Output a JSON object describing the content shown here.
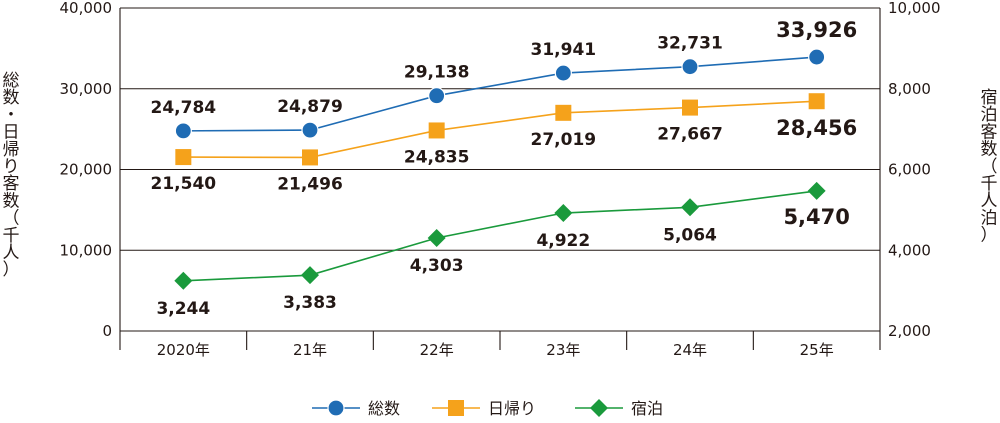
{
  "chart_data": {
    "type": "line",
    "categories": [
      "2020年",
      "21年",
      "22年",
      "23年",
      "24年",
      "25年"
    ],
    "ylabel_left": "総数・日帰り客数（千人）",
    "ylabel_right": "宿泊客数（千人泊）",
    "ylim_left": [
      0,
      40000
    ],
    "ylim_right": [
      2000,
      10000
    ],
    "yticks_left": [
      "0",
      "10,000",
      "20,000",
      "30,000",
      "40,000"
    ],
    "yticks_right": [
      "2,000",
      "4,000",
      "6,000",
      "8,000",
      "10,000"
    ],
    "grid": true,
    "legend_position": "bottom",
    "series": [
      {
        "name": "総数",
        "axis": "left",
        "marker": "circle",
        "color": "#1f6cb4",
        "values": [
          24784,
          24879,
          29138,
          31941,
          32731,
          33926
        ],
        "labels": [
          "24,784",
          "24,879",
          "29,138",
          "31,941",
          "32,731",
          "33,926"
        ]
      },
      {
        "name": "日帰り",
        "axis": "left",
        "marker": "square",
        "color": "#f5a21b",
        "values": [
          21540,
          21496,
          24835,
          27019,
          27667,
          28456
        ],
        "labels": [
          "21,540",
          "21,496",
          "24,835",
          "27,019",
          "27,667",
          "28,456"
        ]
      },
      {
        "name": "宿泊",
        "axis": "right",
        "marker": "diamond",
        "color": "#1a9a3c",
        "values": [
          3244,
          3383,
          4303,
          4922,
          5064,
          5470
        ],
        "labels": [
          "3,244",
          "3,383",
          "4,303",
          "4,922",
          "5,064",
          "5,470"
        ]
      }
    ]
  }
}
